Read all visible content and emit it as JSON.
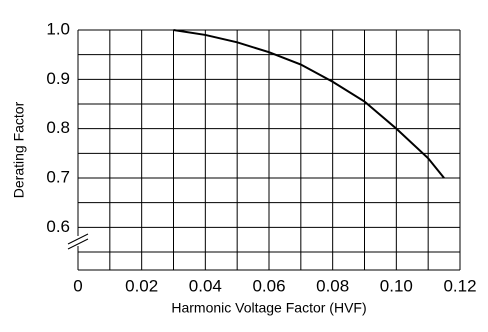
{
  "chart_data": {
    "type": "line",
    "xlabel": "Harmonic Voltage Factor (HVF)",
    "ylabel": "Derating Factor",
    "x": [
      0.03,
      0.04,
      0.05,
      0.06,
      0.07,
      0.08,
      0.09,
      0.1,
      0.11,
      0.115
    ],
    "series": [
      {
        "color": "#000000",
        "values": [
          1.0,
          0.99,
          0.975,
          0.955,
          0.93,
          0.895,
          0.855,
          0.8,
          0.74,
          0.7
        ]
      }
    ],
    "xlim": [
      0,
      0.12
    ],
    "ylim": [
      0.55,
      1.0
    ],
    "xticks": [
      0,
      0.02,
      0.04,
      0.06,
      0.08,
      {
        "value": 0.1,
        "label": "0.10"
      },
      0.12
    ],
    "yticks": [
      0.6,
      0.7,
      0.8,
      0.9,
      {
        "value": 1.0,
        "label": "1.0"
      }
    ],
    "xgrid": [
      0.01,
      0.03,
      0.05,
      0.07,
      0.09,
      0.11
    ],
    "ygrid": [
      0.55,
      0.65,
      0.75,
      0.85,
      0.95
    ],
    "grid": true
  }
}
